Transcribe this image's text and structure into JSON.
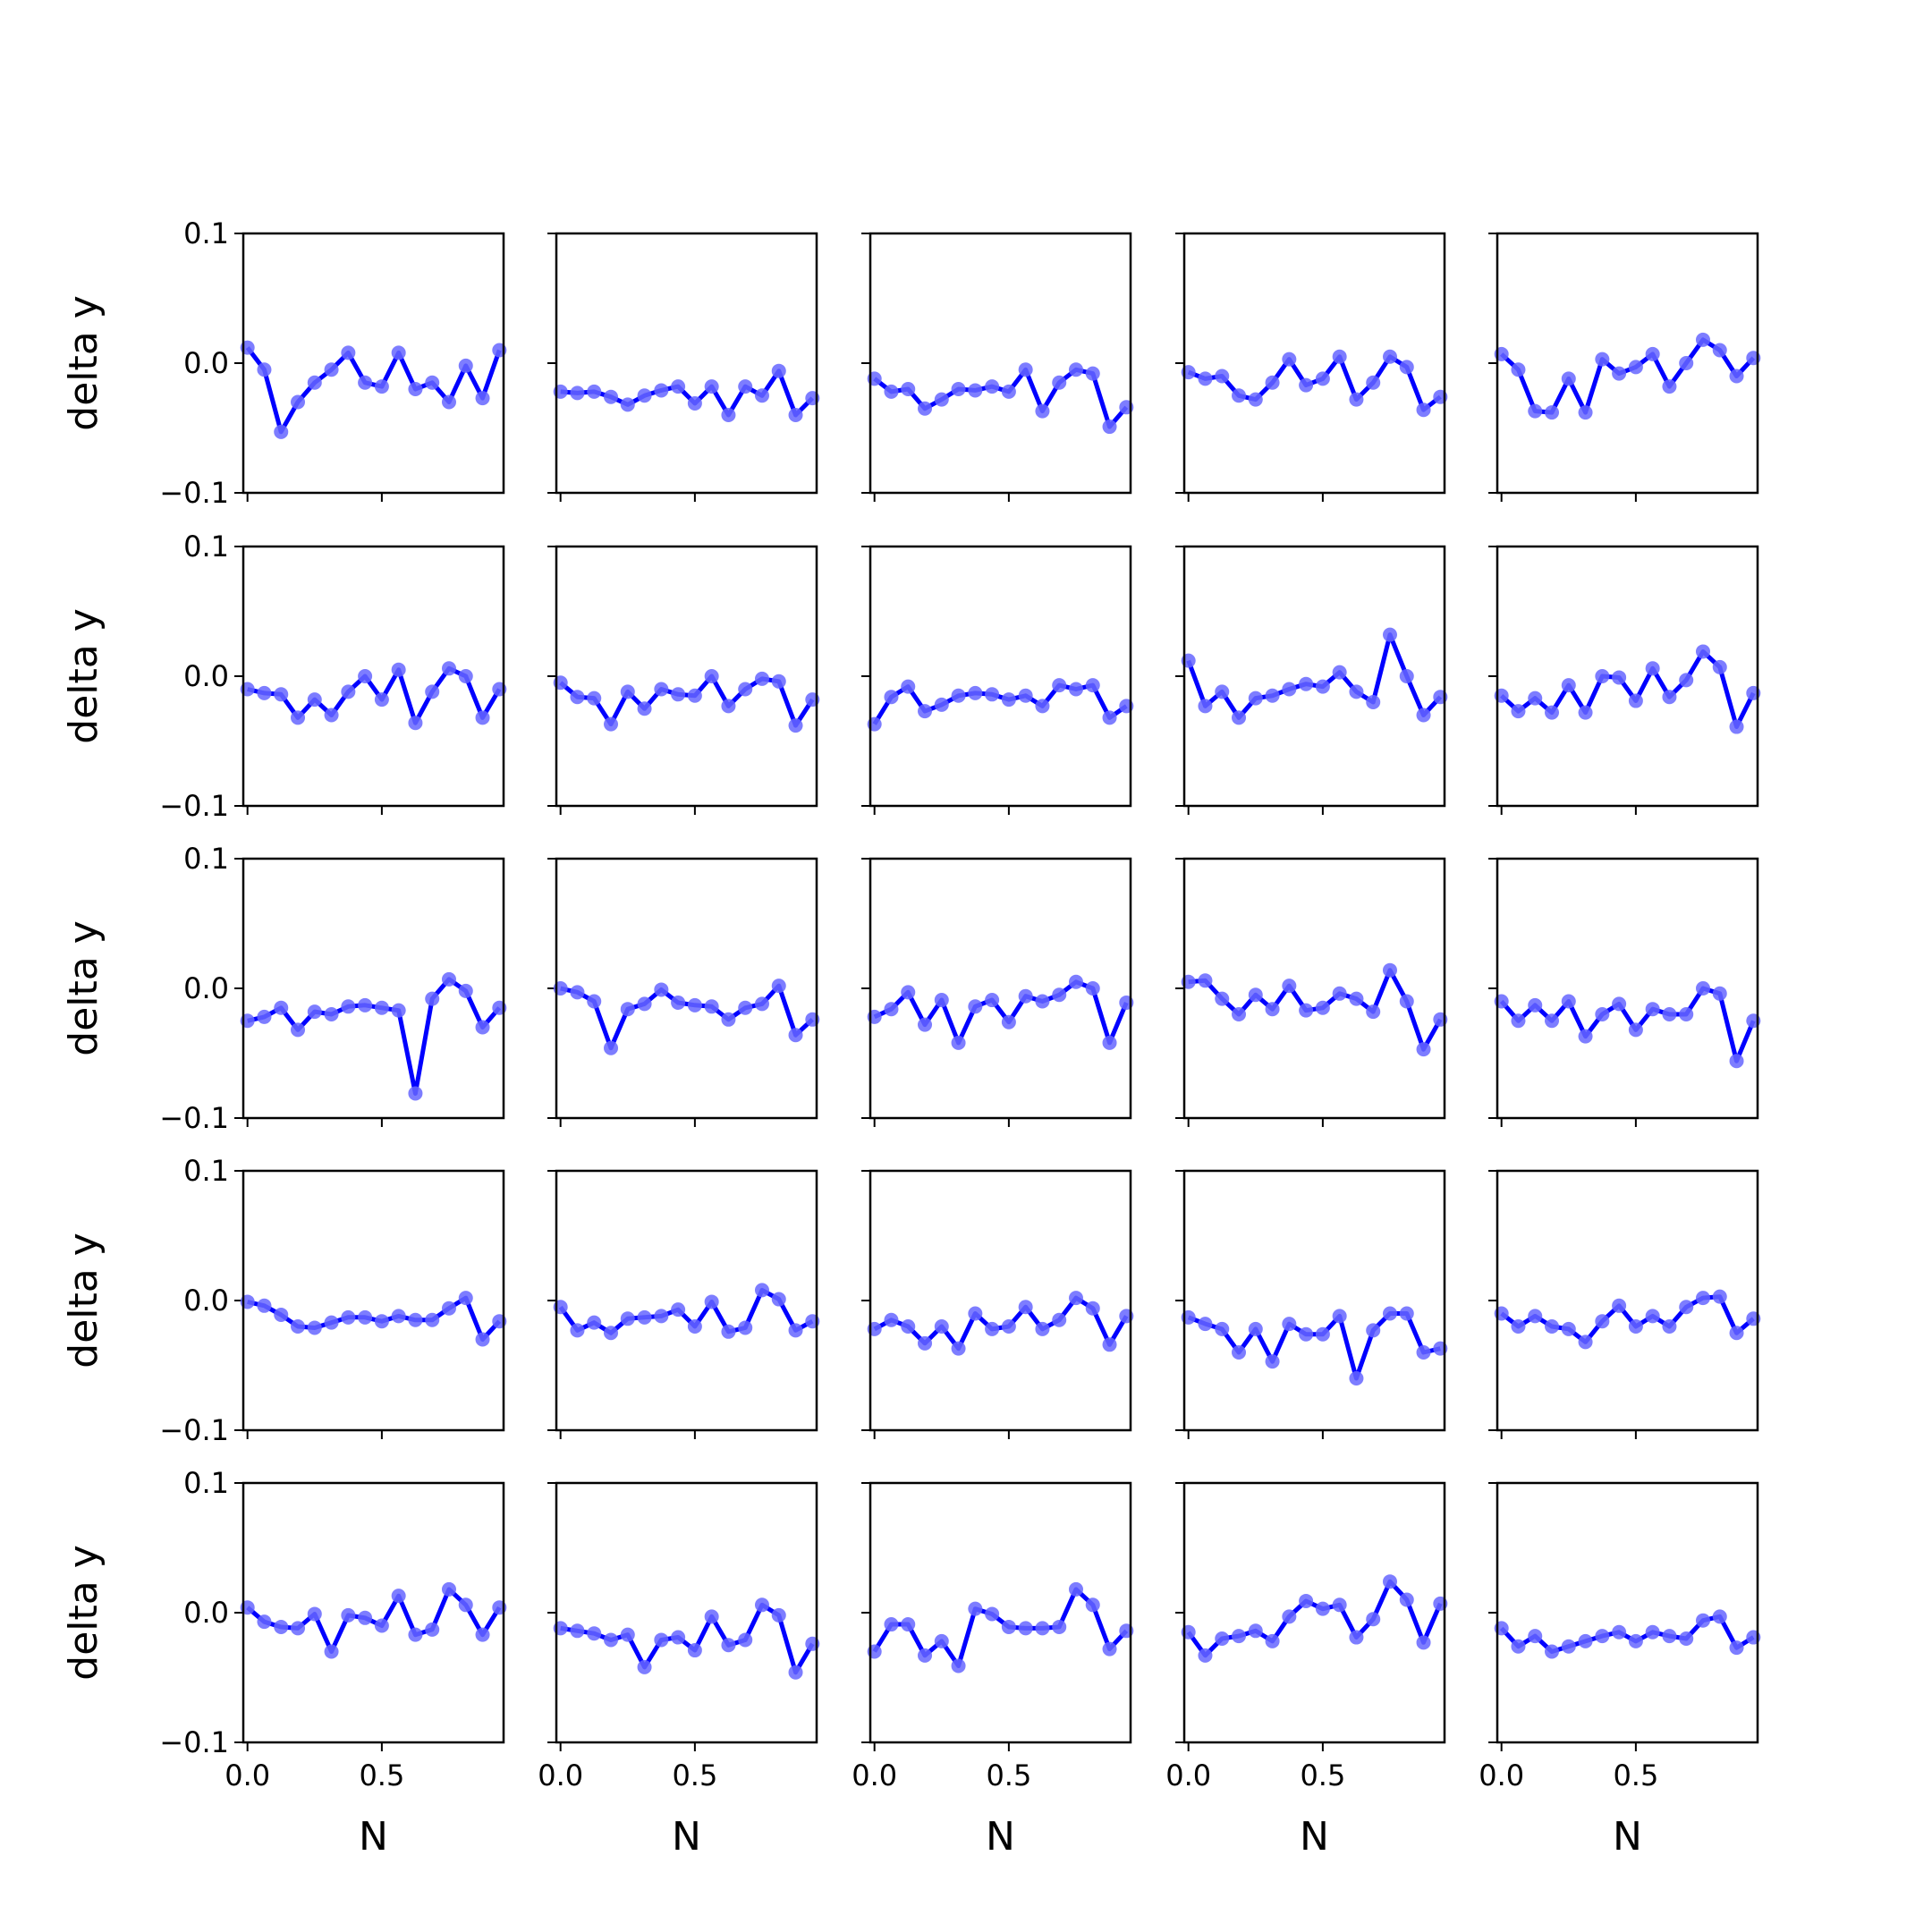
{
  "chart_data": {
    "type": "line",
    "layout": "5x5 grid of subplots",
    "xlabel": "N",
    "ylabel": "delta y",
    "ylim": [
      -0.1,
      0.1
    ],
    "xlim": [
      -0.0156,
      0.9531
    ],
    "yticks": [
      -0.1,
      0.0,
      0.1
    ],
    "ytick_labels": [
      "−0.1",
      "0.0",
      "0.1"
    ],
    "xticks": [
      0.0,
      0.5
    ],
    "xtick_labels": [
      "0.0",
      "0.5"
    ],
    "line_color": "#0000ff",
    "marker_color": "#6666ff",
    "grid": false,
    "x": [
      0.0,
      0.0625,
      0.125,
      0.1875,
      0.25,
      0.3125,
      0.375,
      0.4375,
      0.5,
      0.5625,
      0.625,
      0.6875,
      0.75,
      0.8125,
      0.875,
      0.9375
    ],
    "panels": [
      {
        "values": [
          0.012,
          -0.005,
          -0.053,
          -0.03,
          -0.015,
          -0.005,
          0.008,
          -0.015,
          -0.018,
          0.008,
          -0.02,
          -0.015,
          -0.03,
          -0.002,
          -0.027,
          0.01
        ]
      },
      {
        "values": [
          -0.022,
          -0.023,
          -0.022,
          -0.026,
          -0.032,
          -0.025,
          -0.021,
          -0.018,
          -0.031,
          -0.018,
          -0.04,
          -0.018,
          -0.025,
          -0.006,
          -0.04,
          -0.027
        ]
      },
      {
        "values": [
          -0.012,
          -0.022,
          -0.02,
          -0.035,
          -0.028,
          -0.02,
          -0.021,
          -0.018,
          -0.022,
          -0.005,
          -0.037,
          -0.015,
          -0.005,
          -0.008,
          -0.049,
          -0.034
        ]
      },
      {
        "values": [
          -0.007,
          -0.012,
          -0.01,
          -0.025,
          -0.028,
          -0.015,
          0.003,
          -0.017,
          -0.012,
          0.005,
          -0.028,
          -0.015,
          0.005,
          -0.003,
          -0.036,
          -0.026
        ]
      },
      {
        "values": [
          0.007,
          -0.005,
          -0.037,
          -0.038,
          -0.012,
          -0.038,
          0.003,
          -0.008,
          -0.003,
          0.007,
          -0.018,
          0.0,
          0.018,
          0.01,
          -0.01,
          0.004
        ]
      },
      {
        "values": [
          -0.01,
          -0.013,
          -0.014,
          -0.032,
          -0.018,
          -0.03,
          -0.012,
          0.0,
          -0.018,
          0.005,
          -0.036,
          -0.012,
          0.006,
          0.0,
          -0.032,
          -0.01
        ]
      },
      {
        "values": [
          -0.005,
          -0.016,
          -0.017,
          -0.037,
          -0.012,
          -0.025,
          -0.01,
          -0.014,
          -0.015,
          0.0,
          -0.023,
          -0.01,
          -0.002,
          -0.004,
          -0.038,
          -0.018
        ]
      },
      {
        "values": [
          -0.037,
          -0.016,
          -0.008,
          -0.027,
          -0.022,
          -0.015,
          -0.013,
          -0.014,
          -0.018,
          -0.015,
          -0.023,
          -0.007,
          -0.01,
          -0.007,
          -0.032,
          -0.023
        ]
      },
      {
        "values": [
          0.012,
          -0.023,
          -0.012,
          -0.032,
          -0.017,
          -0.015,
          -0.01,
          -0.006,
          -0.008,
          0.003,
          -0.012,
          -0.02,
          0.032,
          0.0,
          -0.03,
          -0.016
        ]
      },
      {
        "values": [
          -0.015,
          -0.027,
          -0.017,
          -0.028,
          -0.007,
          -0.028,
          0.0,
          -0.001,
          -0.019,
          0.006,
          -0.016,
          -0.003,
          0.019,
          0.007,
          -0.039,
          -0.013
        ]
      },
      {
        "values": [
          -0.025,
          -0.022,
          -0.015,
          -0.032,
          -0.018,
          -0.02,
          -0.014,
          -0.013,
          -0.015,
          -0.017,
          -0.081,
          -0.008,
          0.007,
          -0.002,
          -0.03,
          -0.015
        ]
      },
      {
        "values": [
          0.0,
          -0.003,
          -0.01,
          -0.046,
          -0.016,
          -0.012,
          -0.001,
          -0.011,
          -0.013,
          -0.014,
          -0.024,
          -0.015,
          -0.012,
          0.002,
          -0.036,
          -0.024
        ]
      },
      {
        "values": [
          -0.022,
          -0.016,
          -0.003,
          -0.028,
          -0.009,
          -0.042,
          -0.014,
          -0.009,
          -0.026,
          -0.006,
          -0.01,
          -0.005,
          0.005,
          0.0,
          -0.042,
          -0.011
        ]
      },
      {
        "values": [
          0.005,
          0.006,
          -0.008,
          -0.02,
          -0.005,
          -0.016,
          0.002,
          -0.017,
          -0.015,
          -0.004,
          -0.008,
          -0.018,
          0.014,
          -0.01,
          -0.047,
          -0.024
        ]
      },
      {
        "values": [
          -0.01,
          -0.025,
          -0.013,
          -0.025,
          -0.01,
          -0.037,
          -0.02,
          -0.012,
          -0.032,
          -0.016,
          -0.02,
          -0.02,
          0.0,
          -0.004,
          -0.056,
          -0.025
        ]
      },
      {
        "values": [
          -0.001,
          -0.004,
          -0.011,
          -0.02,
          -0.021,
          -0.017,
          -0.013,
          -0.013,
          -0.016,
          -0.012,
          -0.015,
          -0.015,
          -0.006,
          0.002,
          -0.03,
          -0.016
        ]
      },
      {
        "values": [
          -0.005,
          -0.023,
          -0.017,
          -0.025,
          -0.014,
          -0.013,
          -0.012,
          -0.007,
          -0.02,
          -0.001,
          -0.024,
          -0.021,
          0.008,
          0.001,
          -0.023,
          -0.016
        ]
      },
      {
        "values": [
          -0.022,
          -0.015,
          -0.02,
          -0.033,
          -0.02,
          -0.037,
          -0.01,
          -0.022,
          -0.02,
          -0.005,
          -0.022,
          -0.015,
          0.002,
          -0.006,
          -0.034,
          -0.012
        ]
      },
      {
        "values": [
          -0.013,
          -0.018,
          -0.022,
          -0.04,
          -0.022,
          -0.047,
          -0.018,
          -0.026,
          -0.026,
          -0.012,
          -0.06,
          -0.023,
          -0.01,
          -0.01,
          -0.04,
          -0.037
        ]
      },
      {
        "values": [
          -0.01,
          -0.02,
          -0.012,
          -0.02,
          -0.022,
          -0.032,
          -0.016,
          -0.004,
          -0.02,
          -0.012,
          -0.02,
          -0.005,
          0.002,
          0.003,
          -0.025,
          -0.014
        ]
      },
      {
        "values": [
          0.004,
          -0.007,
          -0.011,
          -0.012,
          -0.001,
          -0.03,
          -0.002,
          -0.004,
          -0.01,
          0.013,
          -0.017,
          -0.013,
          0.018,
          0.006,
          -0.017,
          0.004
        ]
      },
      {
        "values": [
          -0.012,
          -0.014,
          -0.016,
          -0.021,
          -0.017,
          -0.042,
          -0.021,
          -0.019,
          -0.029,
          -0.003,
          -0.025,
          -0.021,
          0.006,
          -0.002,
          -0.046,
          -0.024
        ]
      },
      {
        "values": [
          -0.03,
          -0.009,
          -0.009,
          -0.033,
          -0.022,
          -0.041,
          0.003,
          -0.001,
          -0.011,
          -0.012,
          -0.012,
          -0.011,
          0.018,
          0.006,
          -0.028,
          -0.014
        ]
      },
      {
        "values": [
          -0.015,
          -0.033,
          -0.02,
          -0.018,
          -0.014,
          -0.022,
          -0.003,
          0.009,
          0.003,
          0.006,
          -0.019,
          -0.005,
          0.024,
          0.01,
          -0.023,
          0.007
        ]
      },
      {
        "values": [
          -0.012,
          -0.026,
          -0.018,
          -0.03,
          -0.026,
          -0.022,
          -0.018,
          -0.015,
          -0.022,
          -0.015,
          -0.018,
          -0.02,
          -0.006,
          -0.003,
          -0.027,
          -0.019
        ]
      }
    ]
  }
}
